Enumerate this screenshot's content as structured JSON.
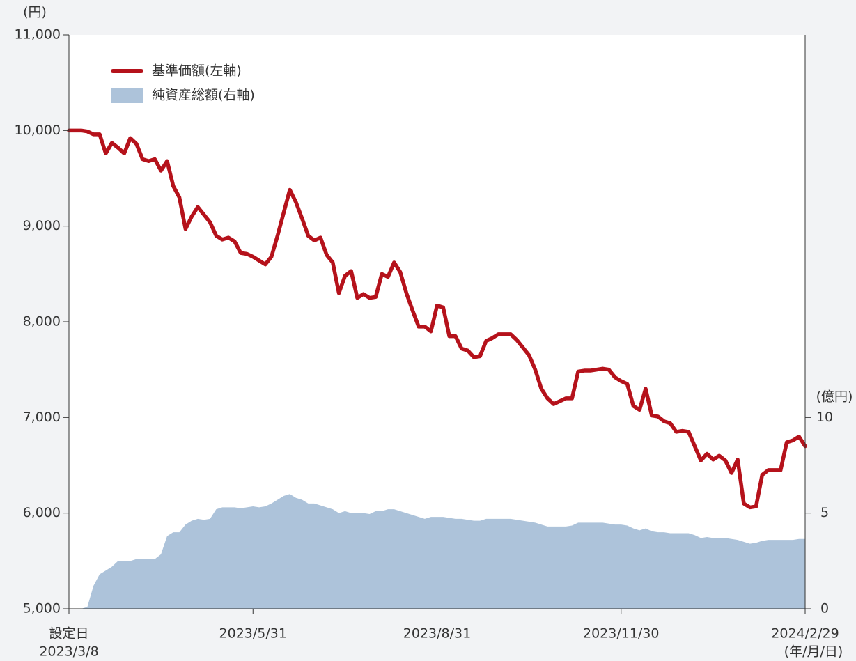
{
  "chart_data": {
    "type": "line",
    "y_unit": "(円)",
    "y2_unit": "(億円)",
    "x_unit": "(年/月/日)",
    "start_label": "設定日",
    "categories": [
      "2023/3/8",
      null,
      null,
      null,
      null,
      null,
      null,
      null,
      null,
      null,
      null,
      null,
      null,
      null,
      null,
      null,
      null,
      null,
      null,
      null,
      null,
      null,
      null,
      null,
      null,
      null,
      null,
      null,
      null,
      null,
      "2023/5/31",
      null,
      null,
      null,
      null,
      null,
      null,
      null,
      null,
      null,
      null,
      null,
      null,
      null,
      null,
      null,
      null,
      null,
      null,
      null,
      null,
      null,
      null,
      null,
      null,
      null,
      null,
      null,
      null,
      null,
      "2023/8/31",
      null,
      null,
      null,
      null,
      null,
      null,
      null,
      null,
      null,
      null,
      null,
      null,
      null,
      null,
      null,
      null,
      null,
      null,
      null,
      null,
      null,
      null,
      null,
      null,
      null,
      null,
      null,
      null,
      null,
      "2023/11/30",
      null,
      null,
      null,
      null,
      null,
      null,
      null,
      null,
      null,
      null,
      null,
      null,
      null,
      null,
      null,
      null,
      null,
      null,
      null,
      null,
      null,
      null,
      null,
      null,
      null,
      null,
      null,
      null,
      null,
      "2024/2/29"
    ],
    "series": [
      {
        "name": "純資産総額(右軸)",
        "type": "area",
        "axis": "y2",
        "color": "#adc3da",
        "values": [
          0,
          0,
          0,
          0.1,
          1.2,
          1.8,
          2.0,
          2.2,
          2.5,
          2.5,
          2.5,
          2.6,
          2.6,
          2.6,
          2.6,
          2.85,
          3.8,
          4.0,
          4.0,
          4.4,
          4.6,
          4.7,
          4.65,
          4.7,
          5.2,
          5.3,
          5.3,
          5.3,
          5.25,
          5.3,
          5.35,
          5.3,
          5.35,
          5.5,
          5.7,
          5.9,
          6.0,
          5.8,
          5.7,
          5.5,
          5.5,
          5.4,
          5.3,
          5.2,
          5.0,
          5.1,
          5.0,
          5.0,
          5.0,
          4.95,
          5.1,
          5.1,
          5.2,
          5.2,
          5.1,
          5.0,
          4.9,
          4.8,
          4.7,
          4.8,
          4.8,
          4.8,
          4.75,
          4.7,
          4.7,
          4.65,
          4.6,
          4.6,
          4.7,
          4.7,
          4.7,
          4.7,
          4.7,
          4.65,
          4.6,
          4.55,
          4.5,
          4.4,
          4.3,
          4.3,
          4.3,
          4.3,
          4.35,
          4.5,
          4.5,
          4.5,
          4.5,
          4.5,
          4.45,
          4.4,
          4.4,
          4.35,
          4.2,
          4.1,
          4.2,
          4.05,
          4.0,
          4.0,
          3.95,
          3.95,
          3.95,
          3.95,
          3.85,
          3.7,
          3.75,
          3.7,
          3.7,
          3.7,
          3.65,
          3.6,
          3.5,
          3.4,
          3.45,
          3.55,
          3.6,
          3.6,
          3.6,
          3.6,
          3.6,
          3.65,
          3.65
        ]
      },
      {
        "name": "基準価額(左軸)",
        "type": "line",
        "axis": "y",
        "color": "#b5121b",
        "values": [
          10000,
          10000,
          10000,
          9990,
          9960,
          9960,
          9760,
          9870,
          9820,
          9760,
          9920,
          9860,
          9700,
          9680,
          9700,
          9580,
          9680,
          9420,
          9300,
          8970,
          9100,
          9200,
          9120,
          9040,
          8900,
          8860,
          8880,
          8840,
          8720,
          8710,
          8680,
          8640,
          8600,
          8680,
          8900,
          9140,
          9380,
          9250,
          9080,
          8900,
          8850,
          8880,
          8700,
          8620,
          8300,
          8480,
          8530,
          8250,
          8290,
          8250,
          8260,
          8500,
          8470,
          8620,
          8520,
          8300,
          8120,
          7950,
          7950,
          7900,
          8170,
          8150,
          7850,
          7850,
          7720,
          7700,
          7630,
          7640,
          7800,
          7830,
          7870,
          7870,
          7870,
          7810,
          7730,
          7650,
          7500,
          7300,
          7200,
          7140,
          7170,
          7200,
          7200,
          7480,
          7490,
          7490,
          7500,
          7510,
          7500,
          7420,
          7380,
          7350,
          7120,
          7080,
          7300,
          7020,
          7010,
          6960,
          6940,
          6850,
          6860,
          6850,
          6700,
          6550,
          6620,
          6560,
          6600,
          6550,
          6420,
          6560,
          6100,
          6060,
          6070,
          6400,
          6450,
          6450,
          6450,
          6740,
          6760,
          6800,
          6700
        ]
      }
    ],
    "ylim": [
      5000,
      11000
    ],
    "yticks": [
      {
        "value": 5000,
        "label": "5,000"
      },
      {
        "value": 6000,
        "label": "6,000"
      },
      {
        "value": 7000,
        "label": "7,000"
      },
      {
        "value": 8000,
        "label": "8,000"
      },
      {
        "value": 9000,
        "label": "9,000"
      },
      {
        "value": 10000,
        "label": "10,000"
      },
      {
        "value": 11000,
        "label": "11,000"
      }
    ],
    "y2lim": [
      0,
      30
    ],
    "y2ticks": [
      0,
      5,
      10
    ]
  }
}
